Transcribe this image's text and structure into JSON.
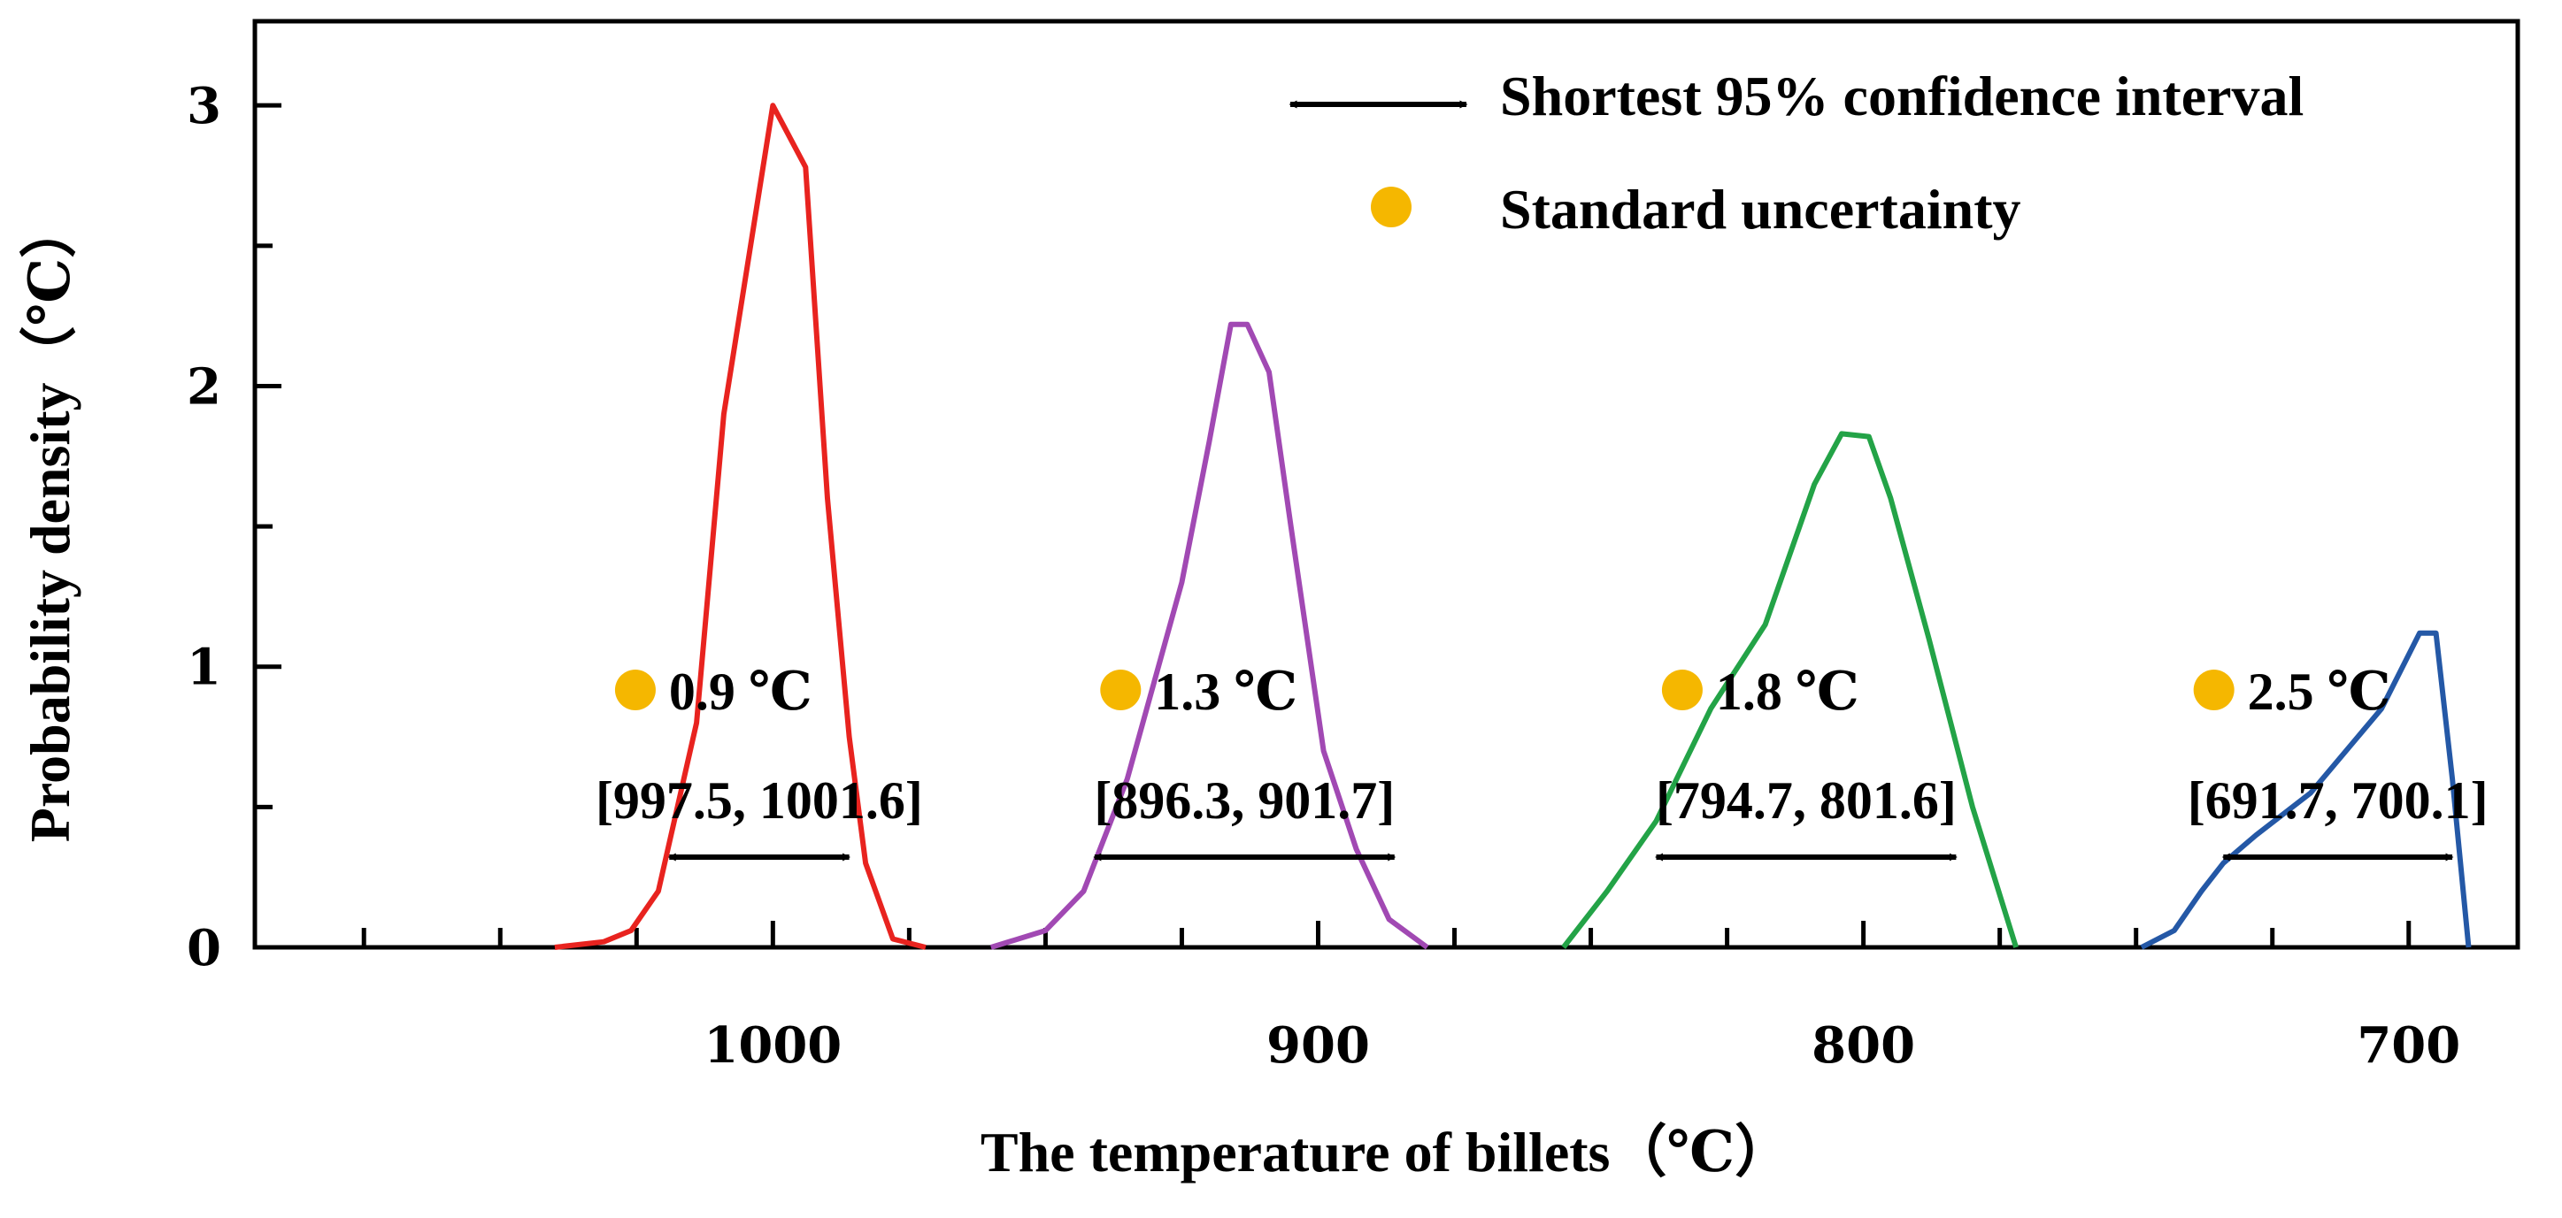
{
  "chart_data": {
    "type": "line",
    "xlabel": "The temperature of billets（℃）",
    "ylabel": "Probability density（℃）",
    "x_reversed": true,
    "xlim": [
      1095,
      680
    ],
    "ylim": [
      0,
      3.3
    ],
    "x_ticks": [
      1000,
      900,
      800,
      700
    ],
    "y_ticks": [
      0,
      1,
      2,
      3
    ],
    "legend": {
      "position": "top-right",
      "interval_label": "Shortest 95% confidence interval",
      "uncertainty_label": "Standard uncertainty",
      "uncertainty_color": "#F5B700"
    },
    "series": [
      {
        "name": "1000",
        "color": "#E8231F",
        "x": [
          1040,
          1031,
          1026,
          1021,
          1014,
          1009,
          1000,
          994,
          990,
          986,
          983,
          978,
          972
        ],
        "y": [
          0,
          0.02,
          0.06,
          0.2,
          0.8,
          1.9,
          3.0,
          2.78,
          1.6,
          0.75,
          0.3,
          0.03,
          0
        ],
        "std_uncertainty": "0.9 ℃",
        "interval_text": "[997.5, 1001.6]",
        "interval": [
          1019,
          986
        ]
      },
      {
        "name": "900",
        "color": "#A149B3",
        "x": [
          960,
          950,
          943,
          935,
          925,
          920,
          916,
          913,
          909,
          905,
          899,
          893,
          887,
          880
        ],
        "y": [
          0,
          0.06,
          0.2,
          0.6,
          1.3,
          1.8,
          2.22,
          2.22,
          2.05,
          1.5,
          0.7,
          0.35,
          0.1,
          0
        ],
        "std_uncertainty": "1.3 ℃",
        "interval_text": "[896.3, 901.7]",
        "interval": [
          941,
          886
        ]
      },
      {
        "name": "800",
        "color": "#23A347",
        "x": [
          855,
          847,
          838,
          828,
          818,
          809,
          804,
          799,
          795,
          788,
          780,
          772
        ],
        "y": [
          0,
          0.2,
          0.45,
          0.85,
          1.15,
          1.65,
          1.83,
          1.82,
          1.6,
          1.1,
          0.5,
          0
        ],
        "std_uncertainty": "1.8 ℃",
        "interval_text": "[794.7, 801.6]",
        "interval": [
          838,
          783
        ]
      },
      {
        "name": "700",
        "color": "#2458A6",
        "x": [
          749,
          743,
          738,
          734,
          728,
          718,
          705,
          698,
          695,
          692,
          689
        ],
        "y": [
          0,
          0.06,
          0.2,
          0.3,
          0.4,
          0.55,
          0.85,
          1.12,
          1.12,
          0.6,
          0
        ],
        "std_uncertainty": "2.5 ℃",
        "interval_text": "[691.7, 700.1]",
        "interval": [
          734,
          692
        ]
      }
    ]
  }
}
